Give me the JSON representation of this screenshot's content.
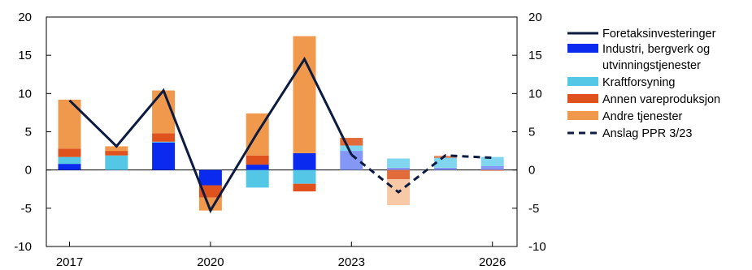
{
  "chart_data": {
    "type": "bar",
    "title": "",
    "xlabel": "",
    "ylabel": "",
    "ylim": [
      -10,
      20
    ],
    "y_ticks": [
      -10,
      -5,
      0,
      5,
      10,
      15,
      20
    ],
    "y_tick_labels": [
      "-10",
      "-5",
      "0",
      "5",
      "10",
      "15",
      "20"
    ],
    "secondary_y_axis": true,
    "x": [
      2017,
      2018,
      2019,
      2020,
      2021,
      2022,
      2023,
      2024,
      2025,
      2026
    ],
    "x_tick_labels": [
      "2017",
      "2020",
      "2023",
      "2026"
    ],
    "x_tick_values": [
      2017,
      2020,
      2023,
      2026
    ],
    "projection_from": 2023,
    "stacked": true,
    "grid": false,
    "legend_position": "right",
    "series": [
      {
        "name": "Industri, bergverk og utvinningstjenester",
        "kind": "bar",
        "color": "#0a2aef",
        "projection_color": "#8497f4",
        "values": [
          0.8,
          0.0,
          3.6,
          -2.0,
          0.7,
          2.2,
          2.5,
          0.3,
          0.3,
          0.5
        ]
      },
      {
        "name": "Kraftforsyning",
        "kind": "bar",
        "color": "#55c7e6",
        "projection_color": "#7fd6ee",
        "values": [
          0.9,
          1.9,
          0.1,
          0.0,
          -2.3,
          -1.8,
          0.7,
          1.2,
          1.3,
          1.2
        ]
      },
      {
        "name": "Annen vareproduksjon",
        "kind": "bar",
        "color": "#e0521d",
        "projection_color": "#e26b3c",
        "values": [
          1.1,
          0.6,
          1.1,
          -1.6,
          1.2,
          -1.0,
          1.0,
          -1.2,
          0.2,
          -0.1
        ]
      },
      {
        "name": "Andre tjenester",
        "kind": "bar",
        "color": "#f0994c",
        "projection_color": "#f7c9a6",
        "values": [
          6.4,
          0.6,
          5.6,
          -1.7,
          5.5,
          15.3,
          0.0,
          -3.4,
          0.1,
          0.0
        ]
      },
      {
        "name": "Foretaksinvesteringer",
        "kind": "line",
        "color": "#0c1b3f",
        "values": [
          9.1,
          3.1,
          10.4,
          -5.3,
          4.9,
          14.5,
          2.0,
          null,
          null,
          null
        ]
      },
      {
        "name": "Anslag PPR 3/23",
        "kind": "line",
        "style": "dashed",
        "color": "#0c1b3f",
        "values": [
          null,
          null,
          null,
          null,
          null,
          null,
          2.0,
          -2.9,
          1.9,
          1.6
        ]
      }
    ],
    "legend_order": [
      "Foretaksinvesteringer",
      "Industri, bergverk og utvinningstjenester",
      "Kraftforsyning",
      "Annen vareproduksjon",
      "Andre tjenester",
      "Anslag PPR 3/23"
    ],
    "legend_lines": [
      [
        "Foretaksinvesteringer"
      ],
      [
        "Industri, bergverk og",
        "utvinningstjenester"
      ],
      [
        "Kraftforsyning"
      ],
      [
        "Annen vareproduksjon"
      ],
      [
        "Andre tjenester"
      ],
      [
        "Anslag PPR 3/23"
      ]
    ]
  }
}
